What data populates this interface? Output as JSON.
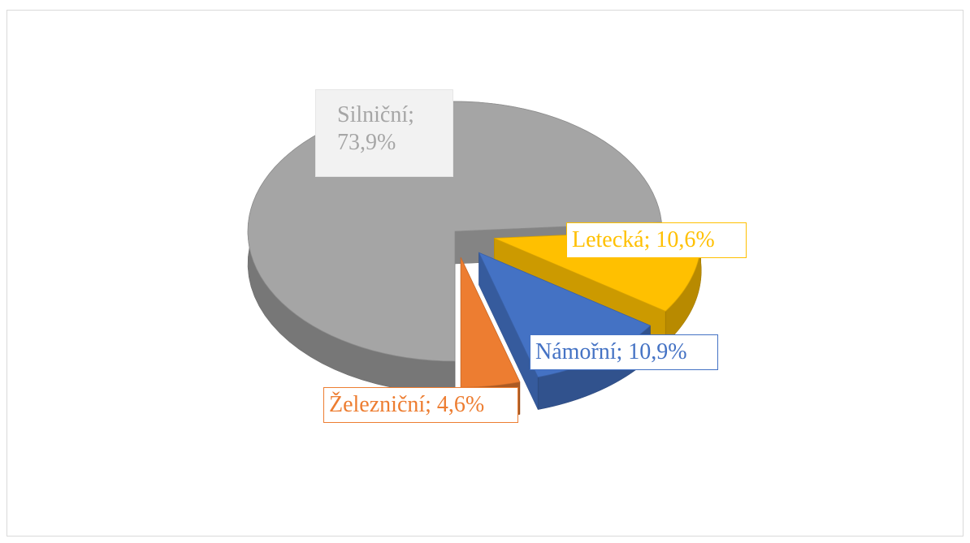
{
  "chart_data": {
    "type": "pie3d",
    "values": [
      73.9,
      10.6,
      10.9,
      4.6
    ],
    "value_labels": [
      "Silniční; 73,9%",
      "Letecká; 10,6%",
      "Námořní; 10,9%",
      "Železniční; 4,6%"
    ],
    "colors": [
      "#a5a5a5",
      "#ffc000",
      "#4472c4",
      "#ed7d31"
    ]
  }
}
